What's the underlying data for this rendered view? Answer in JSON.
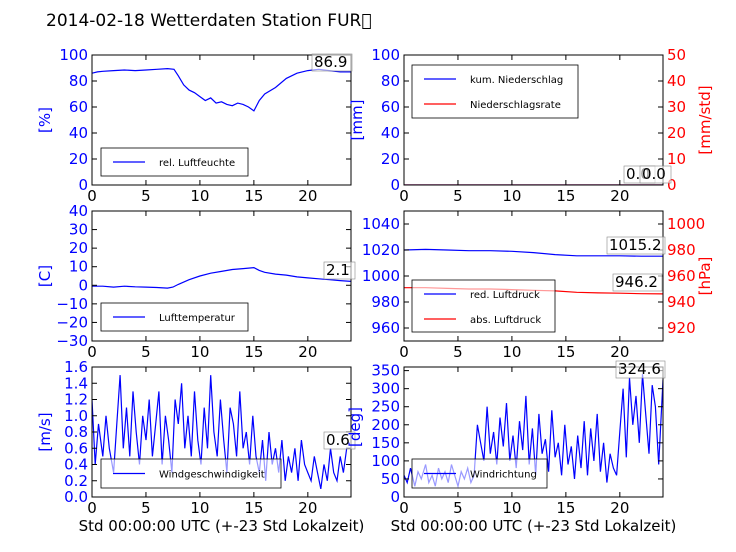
{
  "figure_title": "2014-02-18 Wetterdaten Station FUR\u0000",
  "colors": {
    "blue": "#0000ff",
    "red": "#ff0000",
    "axis": "#000000"
  },
  "chart_data": [
    {
      "type": "line",
      "ylabel": "[%]",
      "xlim": [
        0,
        24
      ],
      "ylim": [
        0,
        100
      ],
      "xticks": [
        "0",
        "5",
        "10",
        "15",
        "20"
      ],
      "yticks": [
        "0",
        "20",
        "40",
        "60",
        "80",
        "100"
      ],
      "annotation": "86.9",
      "legend": [
        "rel. Luftfeuchte"
      ],
      "series": [
        {
          "name": "rel. Luftfeuchte",
          "color": "#0000ff",
          "x": [
            0,
            0.5,
            1,
            2,
            3,
            4,
            5,
            6,
            7,
            7.6,
            8,
            8.5,
            9,
            9.5,
            10,
            10.5,
            11,
            11.5,
            12,
            12.5,
            13,
            13.5,
            14,
            14.5,
            15,
            15.5,
            16,
            17,
            18,
            19,
            20,
            21,
            22,
            23,
            24
          ],
          "y": [
            86,
            87,
            87.5,
            88,
            88.5,
            88,
            88.5,
            89,
            89.5,
            89,
            84,
            77,
            73,
            71,
            68,
            65,
            67,
            63,
            64,
            62,
            61,
            63,
            62,
            60,
            57,
            65,
            70,
            75,
            82,
            86,
            88,
            89,
            88,
            87,
            87
          ]
        }
      ]
    },
    {
      "type": "line",
      "ylabel": "[mm]",
      "y2label": "[mm/std]",
      "xlim": [
        0,
        24
      ],
      "ylim": [
        0,
        100
      ],
      "y2lim": [
        0,
        50
      ],
      "xticks": [
        "0",
        "5",
        "10",
        "15",
        "20"
      ],
      "yticks": [
        "0",
        "20",
        "40",
        "60",
        "80",
        "100"
      ],
      "y2ticks": [
        "0",
        "10",
        "20",
        "30",
        "40",
        "50"
      ],
      "annotations": [
        "0.0",
        "0.0"
      ],
      "legend": [
        "kum. Niederschlag",
        "Niederschlagsrate"
      ],
      "series": [
        {
          "name": "kum. Niederschlag",
          "color": "#0000ff",
          "x": [
            0,
            24
          ],
          "y": [
            0,
            0
          ]
        },
        {
          "name": "Niederschlagsrate",
          "color": "#ff0000",
          "x": [
            0,
            24
          ],
          "y": [
            0,
            0
          ]
        }
      ]
    },
    {
      "type": "line",
      "ylabel": "[C]",
      "xlim": [
        0,
        24
      ],
      "ylim": [
        -30,
        40
      ],
      "xticks": [
        "0",
        "5",
        "10",
        "15",
        "20"
      ],
      "yticks": [
        "−30",
        "−20",
        "−10",
        "0",
        "10",
        "20",
        "30",
        "40"
      ],
      "annotation": "2.1",
      "legend": [
        "Lufttemperatur"
      ],
      "series": [
        {
          "name": "Lufttemperatur",
          "color": "#0000ff",
          "x": [
            0,
            1,
            2,
            3,
            4,
            5,
            6,
            7,
            7.5,
            8,
            9,
            10,
            11,
            12,
            13,
            14,
            15,
            15.5,
            16,
            17,
            18,
            19,
            20,
            21,
            22,
            23,
            24
          ],
          "y": [
            -0.5,
            -0.5,
            -1,
            -0.5,
            -0.8,
            -1,
            -1.2,
            -1.5,
            -1,
            0.5,
            3,
            5,
            6.5,
            7.5,
            8.5,
            9,
            9.5,
            8,
            7,
            6,
            5.5,
            4.5,
            4,
            3.5,
            3,
            2.5,
            2.1
          ]
        }
      ]
    },
    {
      "type": "line",
      "ylabel": "",
      "y2label": "[hPa]",
      "xlim": [
        0,
        24
      ],
      "ylim": [
        950,
        1050
      ],
      "y2lim": [
        910,
        1010
      ],
      "xticks": [
        "0",
        "5",
        "10",
        "15",
        "20"
      ],
      "yticks": [
        "960",
        "980",
        "1000",
        "1020",
        "1040"
      ],
      "y2ticks": [
        "920",
        "940",
        "960",
        "980",
        "1000"
      ],
      "annotations": [
        "1015.2",
        "946.2"
      ],
      "legend": [
        "red. Luftdruck",
        "abs. Luftdruck"
      ],
      "series": [
        {
          "name": "red. Luftdruck",
          "color": "#0000ff",
          "axis": "left",
          "x": [
            0,
            2,
            4,
            6,
            8,
            10,
            12,
            14,
            16,
            18,
            20,
            22,
            24
          ],
          "y": [
            1020,
            1020.5,
            1020,
            1019.5,
            1019.5,
            1019,
            1018,
            1016.5,
            1015.5,
            1015.5,
            1015.5,
            1015.2,
            1015.2
          ]
        },
        {
          "name": "abs. Luftdruck",
          "color": "#ff0000",
          "axis": "right",
          "x": [
            0,
            2,
            4,
            6,
            8,
            10,
            12,
            14,
            16,
            18,
            20,
            22,
            24
          ],
          "y": [
            951,
            951,
            950.5,
            950,
            950,
            949.5,
            949,
            948.5,
            947.5,
            947,
            946.8,
            946.4,
            946.2
          ]
        }
      ]
    },
    {
      "type": "line",
      "ylabel": "[m/s]",
      "xlim": [
        0,
        24
      ],
      "ylim": [
        0,
        1.6
      ],
      "xticks": [
        "0",
        "5",
        "10",
        "15",
        "20"
      ],
      "yticks": [
        "0.0",
        "0.2",
        "0.4",
        "0.6",
        "0.8",
        "1.0",
        "1.2",
        "1.4",
        "1.6"
      ],
      "annotation": "0.6",
      "legend": [
        "Windgeschwindigkeit"
      ],
      "xlabel": "Std 00:00:00 UTC (+-23 Std Lokalzeit)",
      "series": [
        {
          "name": "Windgeschwindigkeit",
          "color": "#0000ff",
          "x": [
            0,
            0.3,
            0.6,
            1,
            1.3,
            1.6,
            2,
            2.3,
            2.6,
            2.9,
            3.2,
            3.5,
            3.8,
            4.1,
            4.4,
            4.7,
            5,
            5.3,
            5.6,
            5.9,
            6.2,
            6.5,
            6.8,
            7.1,
            7.4,
            7.7,
            8,
            8.3,
            8.6,
            8.9,
            9.2,
            9.5,
            9.8,
            10.1,
            10.4,
            10.7,
            11,
            11.3,
            11.6,
            11.9,
            12.2,
            12.5,
            12.8,
            13.1,
            13.4,
            13.7,
            14,
            14.3,
            14.6,
            14.9,
            15.2,
            15.5,
            15.8,
            16.1,
            16.4,
            16.7,
            17,
            17.3,
            17.6,
            17.9,
            18.2,
            18.5,
            18.8,
            19.1,
            19.4,
            19.7,
            20,
            20.3,
            20.6,
            20.9,
            21.2,
            21.5,
            21.8,
            22.1,
            22.4,
            22.7,
            23,
            23.3,
            23.6,
            24
          ],
          "y": [
            1.2,
            0.4,
            0.9,
            0.5,
            1.0,
            0.6,
            0.3,
            0.9,
            1.5,
            0.6,
            1.1,
            0.5,
            1.3,
            0.8,
            0.4,
            1.0,
            0.7,
            1.2,
            0.5,
            0.9,
            1.3,
            0.4,
            1.0,
            0.7,
            0.3,
            1.2,
            0.9,
            1.4,
            0.6,
            1.0,
            0.5,
            1.3,
            0.7,
            0.4,
            1.1,
            0.6,
            1.5,
            0.8,
            0.5,
            1.2,
            0.7,
            0.3,
            1.1,
            0.9,
            0.5,
            1.3,
            0.6,
            0.8,
            0.4,
            1.0,
            0.5,
            0.3,
            0.7,
            0.2,
            0.8,
            0.4,
            0.6,
            0.3,
            0.7,
            0.2,
            0.5,
            0.3,
            0.6,
            0.2,
            0.7,
            0.4,
            0.3,
            0.2,
            0.5,
            0.3,
            0.1,
            0.4,
            0.2,
            0.6,
            0.3,
            0.2,
            0.5,
            0.3,
            0.6,
            0.6
          ]
        }
      ]
    },
    {
      "type": "line",
      "ylabel": "[deg]",
      "xlim": [
        0,
        24
      ],
      "ylim": [
        0,
        360
      ],
      "xticks": [
        "0",
        "5",
        "10",
        "15",
        "20"
      ],
      "yticks": [
        "0",
        "50",
        "100",
        "150",
        "200",
        "250",
        "300",
        "350"
      ],
      "annotation": "324.6",
      "legend": [
        "Windrichtung"
      ],
      "xlabel": "Std 00:00:00 UTC (+-23 Std Lokalzeit)",
      "series": [
        {
          "name": "Windrichtung",
          "color": "#0000ff",
          "x": [
            0,
            0.3,
            0.6,
            1,
            1.3,
            1.6,
            2,
            2.3,
            2.6,
            2.9,
            3.2,
            3.5,
            3.8,
            4.1,
            4.4,
            4.7,
            5,
            5.3,
            5.6,
            5.9,
            6.2,
            6.5,
            6.8,
            7.1,
            7.4,
            7.7,
            8,
            8.3,
            8.6,
            8.9,
            9.2,
            9.5,
            9.8,
            10.1,
            10.4,
            10.7,
            11,
            11.3,
            11.6,
            11.9,
            12.2,
            12.5,
            12.8,
            13.1,
            13.4,
            13.7,
            14,
            14.3,
            14.6,
            14.9,
            15.2,
            15.5,
            15.8,
            16.1,
            16.4,
            16.7,
            17,
            17.3,
            17.6,
            17.9,
            18.2,
            18.5,
            18.8,
            19.1,
            19.4,
            19.7,
            20,
            20.3,
            20.6,
            20.9,
            21.2,
            21.5,
            21.8,
            22.1,
            22.4,
            22.7,
            23,
            23.3,
            23.6,
            24
          ],
          "y": [
            60,
            40,
            80,
            30,
            70,
            50,
            90,
            40,
            60,
            30,
            80,
            50,
            70,
            40,
            90,
            60,
            30,
            70,
            50,
            80,
            40,
            60,
            200,
            150,
            100,
            250,
            120,
            180,
            90,
            220,
            140,
            260,
            100,
            170,
            80,
            210,
            130,
            280,
            90,
            190,
            60,
            230,
            120,
            160,
            70,
            240,
            110,
            150,
            60,
            200,
            90,
            140,
            50,
            170,
            80,
            210,
            60,
            190,
            100,
            230,
            70,
            150,
            40,
            120,
            80,
            60,
            180,
            300,
            110,
            330,
            200,
            280,
            150,
            340,
            230,
            120,
            310,
            250,
            90,
            324.6
          ]
        }
      ]
    }
  ]
}
